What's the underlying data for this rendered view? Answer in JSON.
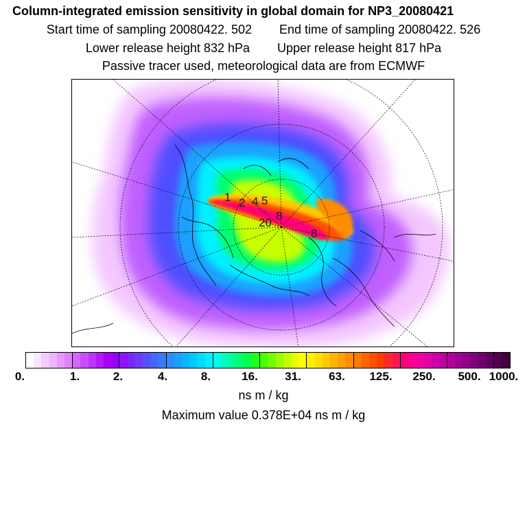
{
  "header": {
    "title": "Column-integrated emission sensitivity in global domain for NP3_20080421",
    "start_label": "Start time of sampling 20080422.   502",
    "end_label": "End time of sampling 20080422.   526",
    "lower_label": "Lower release height  832 hPa",
    "upper_label": "Upper release height  817 hPa",
    "tracer_label": "Passive tracer used, meteorological data are from ECMWF"
  },
  "map": {
    "point_labels": [
      "1",
      "2",
      "4",
      "5",
      "8",
      "20",
      "8"
    ]
  },
  "colorbar": {
    "tick_labels": [
      "0.",
      "1.",
      "2.",
      "4.",
      "8.",
      "16.",
      "31.",
      "63.",
      "125.",
      "250.",
      "500.",
      "1000."
    ],
    "colors": [
      "#ffffff",
      "#fbe6ff",
      "#f5ccff",
      "#efb3ff",
      "#e799ff",
      "#df80ff",
      "#d466ff",
      "#c94dff",
      "#bf33ff",
      "#b31aff",
      "#a800ff",
      "#9a00ff",
      "#8a14ff",
      "#7a28ff",
      "#6a3cff",
      "#5a50ff",
      "#4a64ff",
      "#3a78ff",
      "#2a8cff",
      "#1aa0ff",
      "#0ab4ff",
      "#00c8ff",
      "#00dcff",
      "#00f0ff",
      "#00ffe6",
      "#00ffc0",
      "#00ff99",
      "#00ff70",
      "#00ff48",
      "#20ff20",
      "#48ff00",
      "#70ff00",
      "#99ff00",
      "#c0ff00",
      "#e6ff00",
      "#ffff00",
      "#fff000",
      "#ffdc00",
      "#ffc800",
      "#ffb400",
      "#ffa000",
      "#ff8c00",
      "#ff7800",
      "#ff6400",
      "#ff5000",
      "#ff3c00",
      "#ff2828",
      "#ff1450",
      "#ff0078",
      "#ff0090",
      "#f000a0",
      "#e000a8",
      "#d000a8",
      "#c000a0",
      "#b00098",
      "#a00090",
      "#900088",
      "#800080",
      "#700070",
      "#600060",
      "#500050",
      "#400040"
    ]
  },
  "units_label": "ns m / kg",
  "max_value_label": "Maximum value  0.378E+04 ns m / kg"
}
